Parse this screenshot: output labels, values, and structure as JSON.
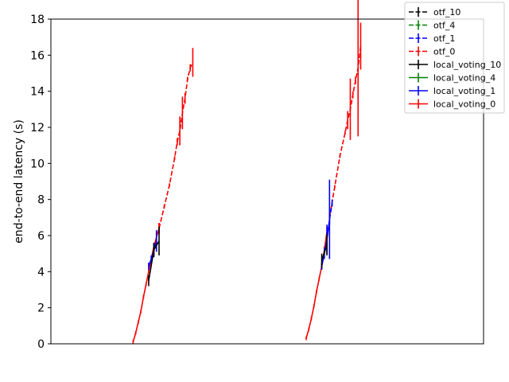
{
  "chart_data": {
    "type": "line",
    "title": "",
    "xlabel": "",
    "ylabel": "end-to-end latency (s)",
    "ylim": [
      0,
      18
    ],
    "y_ticks": [
      0,
      2,
      4,
      6,
      8,
      10,
      12,
      14,
      16,
      18
    ],
    "x_ticks_visible": false,
    "grid": false,
    "legend_position": "top-right",
    "legend": [
      {
        "name": "otf_10",
        "color": "#000000",
        "style": "dashed"
      },
      {
        "name": "otf_4",
        "color": "#008000",
        "style": "dashed"
      },
      {
        "name": "otf_1",
        "color": "#0000ff",
        "style": "dashed"
      },
      {
        "name": "otf_0",
        "color": "#ff0000",
        "style": "dashed"
      },
      {
        "name": "local_voting_10",
        "color": "#000000",
        "style": "solid"
      },
      {
        "name": "local_voting_4",
        "color": "#008000",
        "style": "solid"
      },
      {
        "name": "local_voting_1",
        "color": "#0000ff",
        "style": "solid"
      },
      {
        "name": "local_voting_0",
        "color": "#ff0000",
        "style": "solid"
      }
    ],
    "series": [
      {
        "name": "local_voting_0",
        "color": "#ff0000",
        "style": "solid",
        "points": [
          [
            0.19,
            0.1,
            0.1
          ],
          [
            0.196,
            0.6,
            0.1
          ],
          [
            0.202,
            1.2,
            0.1
          ],
          [
            0.208,
            1.8,
            0.1
          ],
          [
            0.214,
            2.6,
            0.1
          ],
          [
            0.22,
            3.3,
            0.1
          ],
          [
            0.226,
            4.0,
            0.1
          ],
          [
            0.232,
            4.7,
            0.15
          ],
          [
            0.238,
            5.4,
            0.2
          ],
          [
            0.244,
            5.9,
            0.3
          ],
          [
            0.25,
            6.4,
            0.3
          ],
          [
            0.59,
            0.3,
            0.1
          ],
          [
            0.596,
            0.8,
            0.1
          ],
          [
            0.602,
            1.4,
            0.1
          ],
          [
            0.608,
            2.1,
            0.1
          ],
          [
            0.614,
            2.9,
            0.1
          ],
          [
            0.62,
            3.6,
            0.1
          ],
          [
            0.626,
            4.3,
            0.15
          ],
          [
            0.632,
            5.2,
            0.2
          ],
          [
            0.638,
            6.2,
            0.3
          ]
        ]
      },
      {
        "name": "local_voting_1",
        "color": "#0000ff",
        "style": "solid",
        "points": [
          [
            0.226,
            4.3,
            0.2
          ],
          [
            0.232,
            4.7,
            0.2
          ],
          [
            0.238,
            5.2,
            0.3
          ],
          [
            0.244,
            5.7,
            0.6
          ],
          [
            0.626,
            4.3,
            0.2
          ],
          [
            0.632,
            5.0,
            0.3
          ],
          [
            0.638,
            5.8,
            0.8
          ],
          [
            0.644,
            6.9,
            2.2
          ]
        ]
      },
      {
        "name": "local_voting_10",
        "color": "#000000",
        "style": "solid",
        "points": [
          [
            0.226,
            3.5,
            0.3
          ],
          [
            0.238,
            5.2,
            0.4
          ],
          [
            0.25,
            5.7,
            0.8
          ],
          [
            0.626,
            4.6,
            0.4
          ],
          [
            0.638,
            5.5,
            0.6
          ]
        ]
      },
      {
        "name": "otf_0",
        "color": "#ff0000",
        "style": "dashed",
        "points": [
          [
            0.25,
            6.4,
            0.3
          ],
          [
            0.262,
            7.6,
            0.1
          ],
          [
            0.274,
            8.8,
            0.1
          ],
          [
            0.286,
            10.3,
            0.1
          ],
          [
            0.292,
            11.2,
            0.2
          ],
          [
            0.298,
            11.8,
            0.8
          ],
          [
            0.304,
            12.8,
            0.9
          ],
          [
            0.31,
            13.6,
            0.3
          ],
          [
            0.316,
            14.7,
            0.1
          ],
          [
            0.322,
            15.3,
            0.2
          ],
          [
            0.328,
            15.6,
            0.8
          ],
          [
            0.644,
            7.0,
            0.2
          ],
          [
            0.656,
            8.7,
            0.1
          ],
          [
            0.668,
            10.4,
            0.1
          ],
          [
            0.68,
            11.7,
            0.1
          ],
          [
            0.686,
            12.4,
            0.5
          ],
          [
            0.692,
            13.0,
            1.7
          ],
          [
            0.698,
            13.8,
            0.2
          ],
          [
            0.704,
            14.6,
            0.2
          ],
          [
            0.71,
            15.3,
            3.8
          ],
          [
            0.716,
            16.5,
            1.3
          ]
        ]
      },
      {
        "name": "otf_1",
        "color": "#0000ff",
        "style": "dashed",
        "points": [
          [
            0.644,
            6.9,
            0.3
          ],
          [
            0.65,
            7.8,
            0.2
          ]
        ]
      }
    ]
  }
}
